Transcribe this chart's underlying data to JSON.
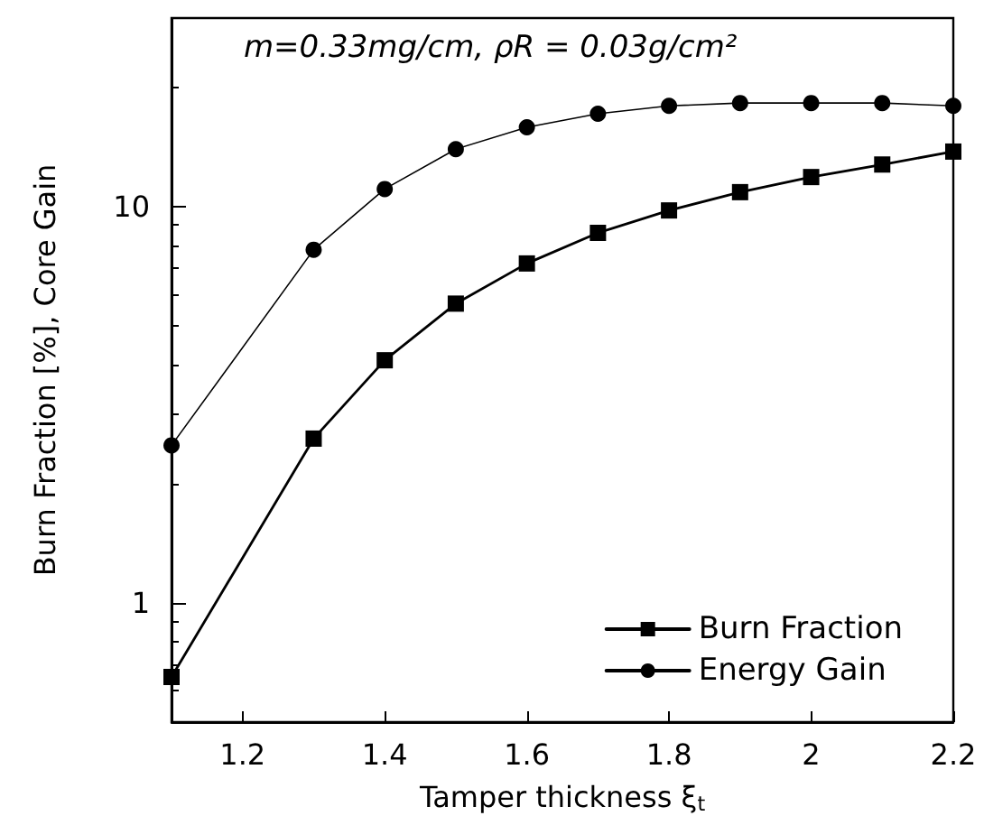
{
  "chart_data": {
    "type": "line",
    "xlabel": "Tamper thickness ξ$_{t}$",
    "ylabel": "Burn Fraction [%], Core Gain",
    "annotations": [
      "m=0.33mg/cm, ρR = 0.03g/cm²"
    ],
    "x": [
      1.1,
      1.3,
      1.4,
      1.5,
      1.6,
      1.7,
      1.8,
      1.9,
      2.0,
      2.1,
      2.2
    ],
    "series": [
      {
        "name": "Burn Fraction",
        "color": "#000000",
        "marker": "square",
        "values": [
          0.65,
          2.6,
          4.1,
          5.7,
          7.2,
          8.6,
          9.8,
          10.9,
          11.9,
          12.8,
          13.8
        ]
      },
      {
        "name": "Energy Gain",
        "color": "#000000",
        "marker": "circle",
        "values": [
          2.5,
          7.8,
          11.1,
          14.0,
          15.9,
          17.2,
          18.0,
          18.3,
          18.3,
          18.3,
          18.0
        ]
      }
    ],
    "xlim": [
      1.1,
      2.2
    ],
    "xticks": [
      1.2,
      1.4,
      1.6,
      1.8,
      2,
      2.2
    ],
    "ylim": [
      0.5,
      30
    ],
    "yticks": [
      1,
      10
    ],
    "log": "y",
    "grid": false,
    "legend": "bottom right",
    "line_style": "solid"
  }
}
